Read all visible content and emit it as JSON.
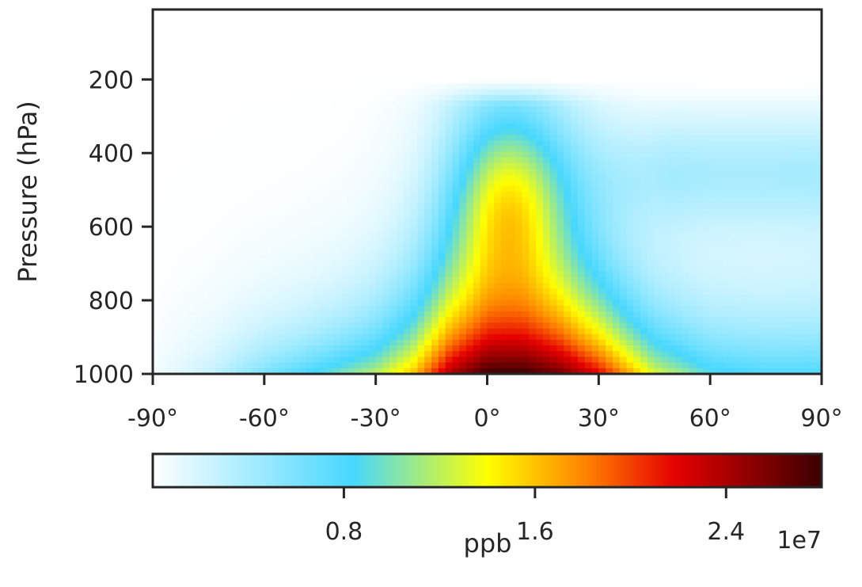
{
  "chart_data": {
    "type": "heatmap",
    "title": "",
    "xlabel": "",
    "ylabel": "Pressure (hPa)",
    "x_ticks": [
      "-90°",
      "-60°",
      "-30°",
      "0°",
      "30°",
      "60°",
      "90°"
    ],
    "x_tick_values": [
      -90,
      -60,
      -30,
      0,
      30,
      60,
      90
    ],
    "xlim": [
      -90,
      90
    ],
    "y_ticks": [
      "200",
      "400",
      "600",
      "800",
      "1000"
    ],
    "y_tick_values": [
      200,
      400,
      600,
      800,
      1000
    ],
    "ylim": [
      1000,
      10
    ],
    "y_inverted": true,
    "grid": false,
    "colorbar": {
      "label": "ppb",
      "offset_text": "1e7",
      "ticks": [
        "0.8",
        "1.6",
        "2.4"
      ],
      "tick_values": [
        0.8,
        1.6,
        2.4
      ],
      "range": [
        0,
        2.8
      ],
      "colormap": [
        "#ffffff",
        "#47d7ff",
        "#ffff00",
        "#ff8000",
        "#e60000",
        "#3c0000"
      ]
    },
    "z_unit_scale": 10000000,
    "surface_profile": {
      "lat": [
        -90,
        -75,
        -60,
        -45,
        -30,
        -20,
        -10,
        0,
        10,
        20,
        30,
        45,
        60,
        75,
        90
      ],
      "value": [
        0.05,
        0.25,
        0.6,
        0.9,
        1.2,
        1.6,
        2.4,
        2.8,
        2.8,
        2.6,
        2.2,
        1.3,
        0.9,
        0.8,
        0.8
      ]
    },
    "peak": {
      "lat": 8,
      "pressure": 1000,
      "value": 2.8
    }
  }
}
